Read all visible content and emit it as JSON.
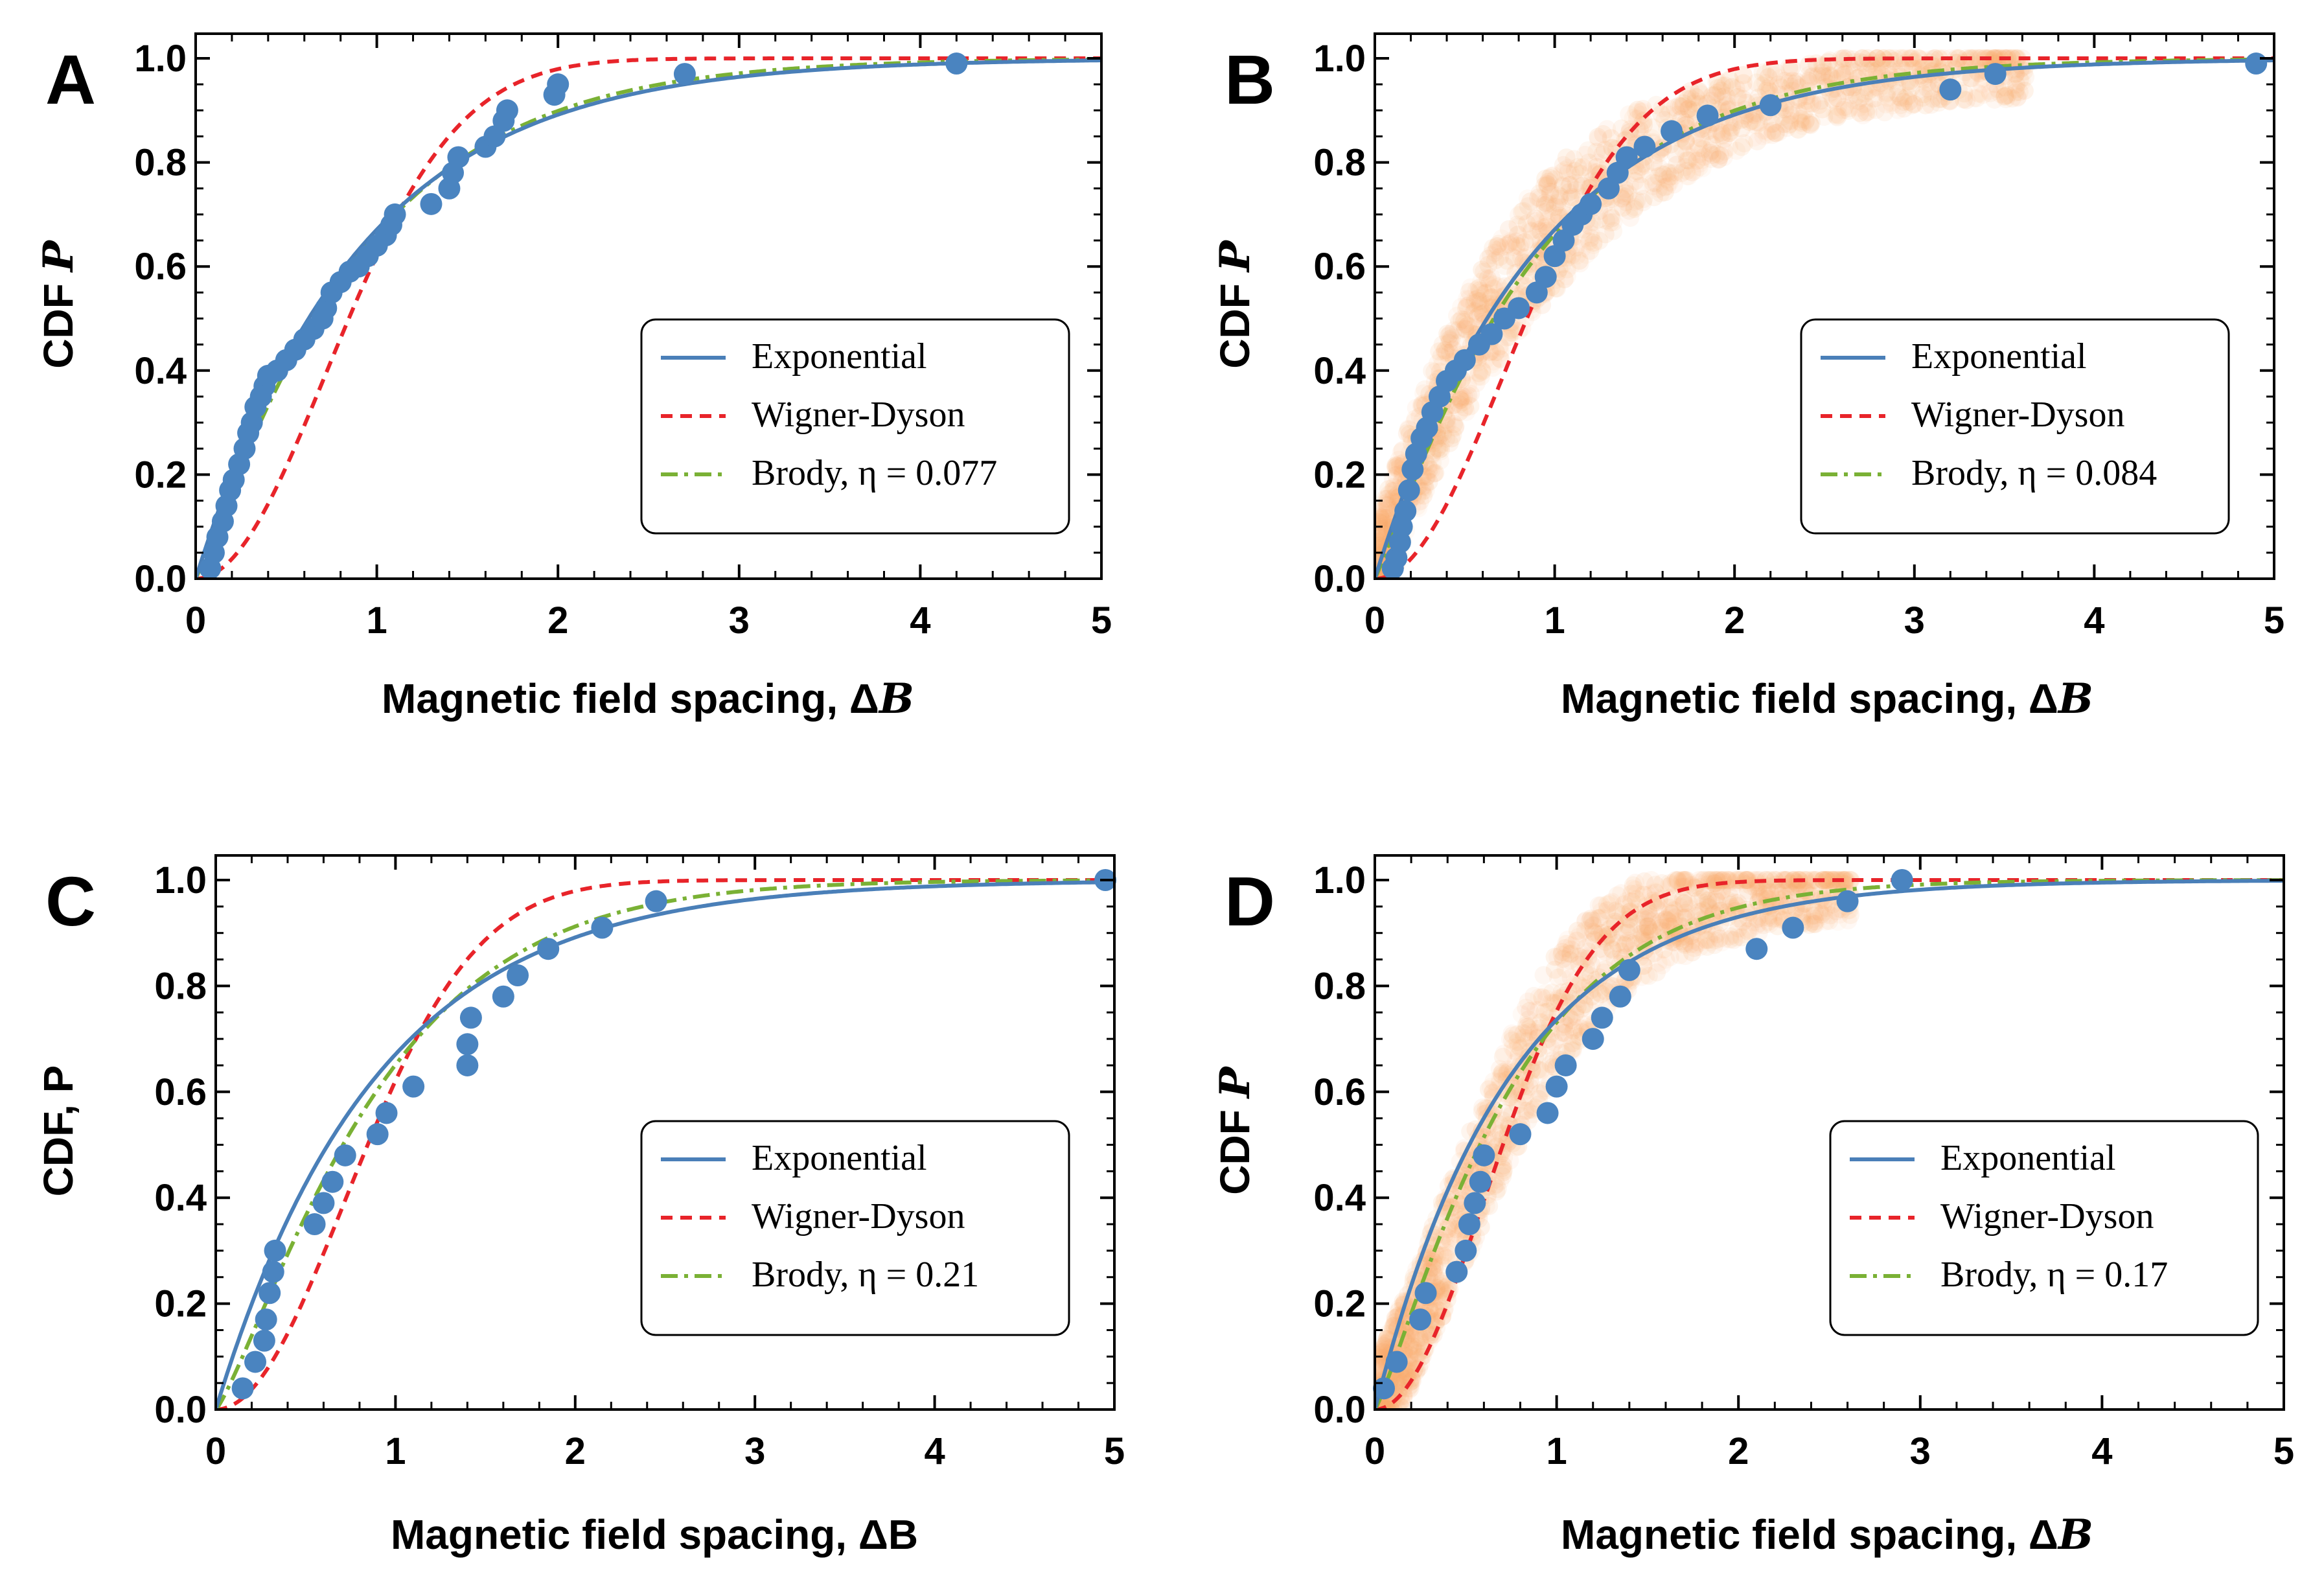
{
  "colors": {
    "exponential": "#4a7fb8",
    "wigner_dyson": "#e8242a",
    "brody": "#7ab135",
    "data_points": "#4a84c0",
    "cloud": "#f9a05a"
  },
  "chart_data": [
    {
      "type": "line",
      "panel": "A",
      "xlabel": "Magnetic field spacing, Δ",
      "xlabel_var": "B",
      "ylabel": "CDF",
      "ylabel_var": "P",
      "xlim": [
        0,
        5
      ],
      "ylim": [
        0,
        1.05
      ],
      "xticks": [
        "0",
        "1",
        "2",
        "3",
        "4",
        "5"
      ],
      "yticks": [
        "0.0",
        "0.2",
        "0.4",
        "0.6",
        "0.8",
        "1.0"
      ],
      "legend": {
        "position": "bottom-right",
        "entries": [
          "Exponential",
          "Wigner-Dyson",
          "Brody, η = 0.077"
        ]
      },
      "brody_eta": 0.077,
      "mean_spacing": 0.9,
      "has_cloud": false,
      "points": [
        [
          0.08,
          0.02
        ],
        [
          0.1,
          0.05
        ],
        [
          0.12,
          0.08
        ],
        [
          0.15,
          0.11
        ],
        [
          0.17,
          0.14
        ],
        [
          0.19,
          0.17
        ],
        [
          0.21,
          0.19
        ],
        [
          0.24,
          0.22
        ],
        [
          0.27,
          0.25
        ],
        [
          0.29,
          0.28
        ],
        [
          0.31,
          0.3
        ],
        [
          0.33,
          0.33
        ],
        [
          0.36,
          0.35
        ],
        [
          0.38,
          0.37
        ],
        [
          0.4,
          0.39
        ],
        [
          0.45,
          0.4
        ],
        [
          0.5,
          0.42
        ],
        [
          0.55,
          0.44
        ],
        [
          0.6,
          0.46
        ],
        [
          0.65,
          0.48
        ],
        [
          0.7,
          0.5
        ],
        [
          0.72,
          0.52
        ],
        [
          0.75,
          0.55
        ],
        [
          0.8,
          0.57
        ],
        [
          0.85,
          0.59
        ],
        [
          0.9,
          0.6
        ],
        [
          0.95,
          0.62
        ],
        [
          1.0,
          0.64
        ],
        [
          1.05,
          0.66
        ],
        [
          1.08,
          0.68
        ],
        [
          1.1,
          0.7
        ],
        [
          1.3,
          0.72
        ],
        [
          1.4,
          0.75
        ],
        [
          1.42,
          0.78
        ],
        [
          1.45,
          0.81
        ],
        [
          1.6,
          0.83
        ],
        [
          1.65,
          0.85
        ],
        [
          1.7,
          0.88
        ],
        [
          1.72,
          0.9
        ],
        [
          1.98,
          0.93
        ],
        [
          2.0,
          0.95
        ],
        [
          2.7,
          0.97
        ],
        [
          4.2,
          0.99
        ]
      ]
    },
    {
      "type": "line",
      "panel": "B",
      "xlabel": "Magnetic field spacing, Δ",
      "xlabel_var": "B",
      "ylabel": "CDF",
      "ylabel_var": "P",
      "xlim": [
        0,
        5
      ],
      "ylim": [
        0,
        1.05
      ],
      "xticks": [
        "0",
        "1",
        "2",
        "3",
        "4",
        "5"
      ],
      "yticks": [
        "0.0",
        "0.2",
        "0.4",
        "0.6",
        "0.8",
        "1.0"
      ],
      "legend": {
        "position": "bottom-right",
        "entries": [
          "Exponential",
          "Wigner-Dyson",
          "Brody, η = 0.084"
        ]
      },
      "brody_eta": 0.084,
      "mean_spacing": 0.9,
      "has_cloud": true,
      "points": [
        [
          0.1,
          0.02
        ],
        [
          0.12,
          0.04
        ],
        [
          0.14,
          0.07
        ],
        [
          0.15,
          0.1
        ],
        [
          0.17,
          0.13
        ],
        [
          0.19,
          0.17
        ],
        [
          0.21,
          0.21
        ],
        [
          0.23,
          0.24
        ],
        [
          0.26,
          0.27
        ],
        [
          0.29,
          0.29
        ],
        [
          0.32,
          0.32
        ],
        [
          0.36,
          0.35
        ],
        [
          0.4,
          0.38
        ],
        [
          0.45,
          0.4
        ],
        [
          0.5,
          0.42
        ],
        [
          0.58,
          0.45
        ],
        [
          0.65,
          0.47
        ],
        [
          0.72,
          0.5
        ],
        [
          0.8,
          0.52
        ],
        [
          0.9,
          0.55
        ],
        [
          0.95,
          0.58
        ],
        [
          1.0,
          0.62
        ],
        [
          1.05,
          0.65
        ],
        [
          1.1,
          0.68
        ],
        [
          1.15,
          0.7
        ],
        [
          1.2,
          0.72
        ],
        [
          1.3,
          0.75
        ],
        [
          1.35,
          0.78
        ],
        [
          1.4,
          0.81
        ],
        [
          1.5,
          0.83
        ],
        [
          1.65,
          0.86
        ],
        [
          1.85,
          0.89
        ],
        [
          2.2,
          0.91
        ],
        [
          3.2,
          0.94
        ],
        [
          3.45,
          0.97
        ],
        [
          4.9,
          0.99
        ]
      ]
    },
    {
      "type": "line",
      "panel": "C",
      "xlabel": "Magnetic field spacing, ΔB",
      "xlabel_var": "",
      "ylabel": "CDF, P",
      "ylabel_var": "",
      "xlim": [
        0,
        5
      ],
      "ylim": [
        0,
        1.05
      ],
      "xticks": [
        "0",
        "1",
        "2",
        "3",
        "4",
        "5"
      ],
      "yticks": [
        "0.0",
        "0.2",
        "0.4",
        "0.6",
        "0.8",
        "1.0"
      ],
      "legend": {
        "position": "bottom-right",
        "entries": [
          "Exponential",
          "Wigner-Dyson",
          "Brody, η = 0.21"
        ]
      },
      "brody_eta": 0.21,
      "mean_spacing": 0.9,
      "has_cloud": false,
      "points": [
        [
          0.15,
          0.04
        ],
        [
          0.22,
          0.09
        ],
        [
          0.27,
          0.13
        ],
        [
          0.28,
          0.17
        ],
        [
          0.3,
          0.22
        ],
        [
          0.32,
          0.26
        ],
        [
          0.33,
          0.3
        ],
        [
          0.55,
          0.35
        ],
        [
          0.6,
          0.39
        ],
        [
          0.65,
          0.43
        ],
        [
          0.72,
          0.48
        ],
        [
          0.9,
          0.52
        ],
        [
          0.95,
          0.56
        ],
        [
          1.1,
          0.61
        ],
        [
          1.4,
          0.65
        ],
        [
          1.4,
          0.69
        ],
        [
          1.42,
          0.74
        ],
        [
          1.6,
          0.78
        ],
        [
          1.68,
          0.82
        ],
        [
          1.85,
          0.87
        ],
        [
          2.15,
          0.91
        ],
        [
          2.45,
          0.96
        ],
        [
          4.95,
          1.0
        ]
      ]
    },
    {
      "type": "line",
      "panel": "D",
      "xlabel": "Magnetic field spacing, Δ",
      "xlabel_var": "B",
      "ylabel": "CDF",
      "ylabel_var": "P",
      "xlim": [
        0,
        5
      ],
      "ylim": [
        0,
        1.05
      ],
      "xticks": [
        "0",
        "1",
        "2",
        "3",
        "4",
        "5"
      ],
      "yticks": [
        "0.0",
        "0.2",
        "0.4",
        "0.6",
        "0.8",
        "1.0"
      ],
      "legend": {
        "position": "bottom-right",
        "entries": [
          "Exponential",
          "Wigner-Dyson",
          "Brody, η = 0.17"
        ]
      },
      "brody_eta": 0.17,
      "mean_spacing": 0.75,
      "has_cloud": true,
      "points": [
        [
          0.05,
          0.04
        ],
        [
          0.12,
          0.09
        ],
        [
          0.25,
          0.17
        ],
        [
          0.28,
          0.22
        ],
        [
          0.45,
          0.26
        ],
        [
          0.5,
          0.3
        ],
        [
          0.52,
          0.35
        ],
        [
          0.55,
          0.39
        ],
        [
          0.58,
          0.43
        ],
        [
          0.6,
          0.48
        ],
        [
          0.8,
          0.52
        ],
        [
          0.95,
          0.56
        ],
        [
          1.0,
          0.61
        ],
        [
          1.05,
          0.65
        ],
        [
          1.2,
          0.7
        ],
        [
          1.25,
          0.74
        ],
        [
          1.35,
          0.78
        ],
        [
          1.4,
          0.83
        ],
        [
          2.1,
          0.87
        ],
        [
          2.3,
          0.91
        ],
        [
          2.6,
          0.96
        ],
        [
          2.9,
          1.0
        ]
      ]
    }
  ]
}
